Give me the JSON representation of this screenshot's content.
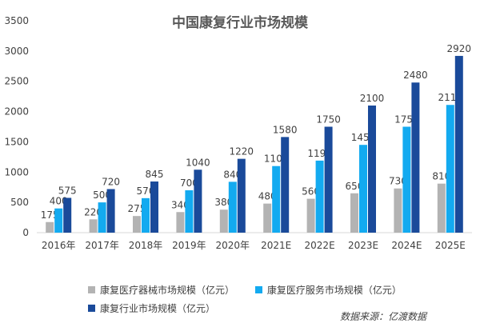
{
  "chart_data": {
    "type": "bar",
    "title": "中国康复行业市场规模",
    "categories": [
      "2016年",
      "2017年",
      "2018年",
      "2019年",
      "2020年",
      "2021E",
      "2022E",
      "2023E",
      "2024E",
      "2025E"
    ],
    "series": [
      {
        "name": "康复医疗器械市场规模（亿元）",
        "color": "#b3b3b3",
        "values": [
          175,
          220,
          275,
          340,
          380,
          480,
          560,
          650,
          730,
          810
        ],
        "labels": [
          "175",
          "220",
          "275",
          "340",
          "380",
          "480",
          "560",
          "650",
          "730",
          "810"
        ]
      },
      {
        "name": "康复医疗服务市场规模（亿元）",
        "color": "#13aaf0",
        "values": [
          400,
          500,
          570,
          700,
          840,
          1100,
          1190,
          1450,
          1750,
          2110
        ],
        "labels": [
          "400",
          "500",
          "570",
          "700",
          "840",
          "1100",
          "1190",
          "1450",
          "1750",
          "2110"
        ]
      },
      {
        "name": "康复行业市场规模（亿元）",
        "color": "#1a4a9a",
        "values": [
          575,
          720,
          845,
          1040,
          1220,
          1580,
          1750,
          2100,
          2480,
          2920
        ],
        "labels": [
          "575",
          "720",
          "845",
          "1040",
          "1220",
          "1580",
          "1750",
          "2100",
          "2480",
          "2920"
        ]
      }
    ],
    "ylim": [
      0,
      3500
    ],
    "yticks": [
      0,
      500,
      1000,
      1500,
      2000,
      2500,
      3000,
      3500
    ],
    "ytick_labels": [
      "0",
      "500",
      "1000",
      "1500",
      "2000",
      "2500",
      "3000",
      "3500"
    ],
    "grid": false,
    "legend_position": "bottom"
  },
  "source_note": "数据来源：亿渡数据"
}
